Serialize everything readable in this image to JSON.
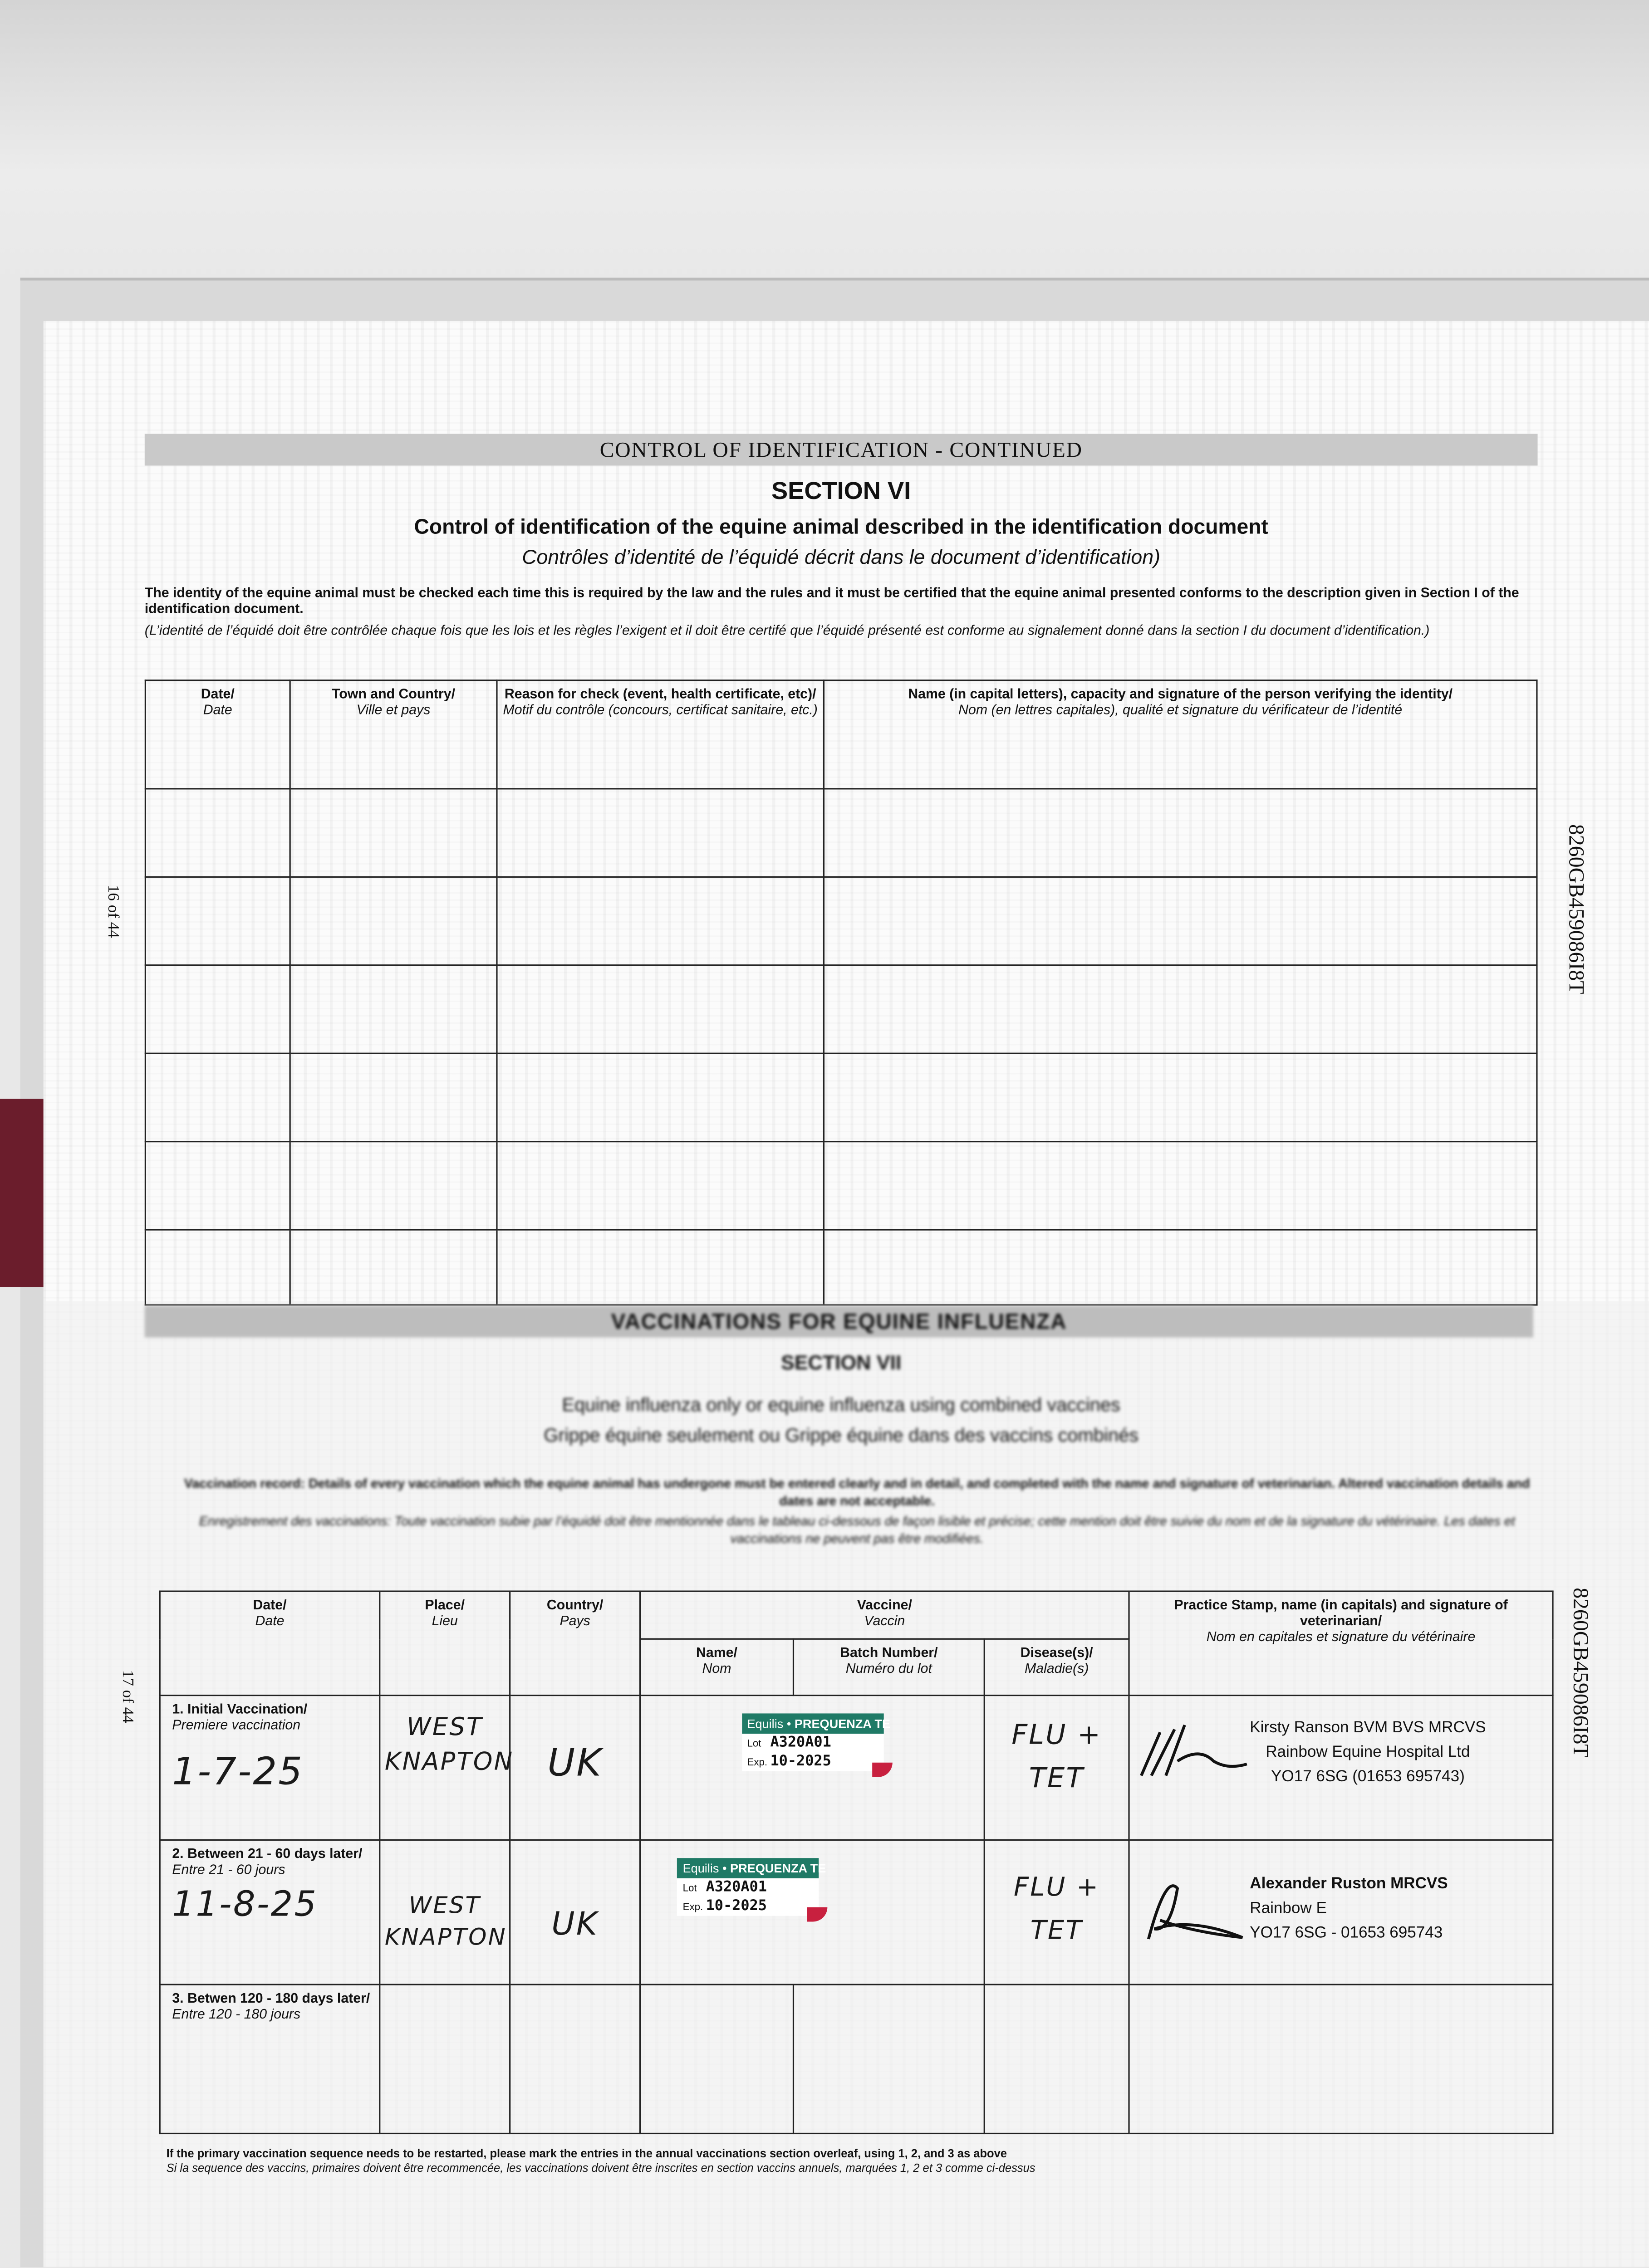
{
  "page16": {
    "band_title": "CONTROL OF IDENTIFICATION - CONTINUED",
    "section": "SECTION VI",
    "title": "Control of identification of the equine animal described in the identification document",
    "subtitle": "Contrôles d’identité de l’équidé décrit dans le document d’identification)",
    "instructions_en": "The identity of the equine animal must be checked each time this is required by the law and the rules and it must be certified that the equine animal presented conforms to the description given in Section I of the identification document.",
    "instructions_fr": "(L’identité de l’équidé doit être contrôlée chaque fois que les lois et les règles l’exigent et il doit être certifé que l’équidé présenté est conforme au signalement donné dans la section I du document d’identification.)",
    "columns": [
      {
        "en": "Date/",
        "fr": "Date"
      },
      {
        "en": "Town and Country/",
        "fr": "Ville et pays"
      },
      {
        "en": "Reason for check (event, health certificate, etc)/",
        "fr": "Motif du contrôle (concours, certificat sanitaire, etc.)"
      },
      {
        "en": "Name (in capital letters), capacity and signature of the person verifying the identity/",
        "fr": "Nom (en lettres capitales), qualité et signature du vérificateur de l’identité"
      }
    ],
    "page_number": "16 of 44",
    "passport_number": "8260GB459086I8T"
  },
  "page17": {
    "band_title": "VACCINATIONS FOR EQUINE INFLUENZA",
    "section": "SECTION VII",
    "title": "Equine influenza only or equine influenza using combined vaccines",
    "subtitle": "Grippe équine seulement ou Grippe équine dans des vaccins combinés",
    "instructions_en": "Vaccination record: Details of every vaccination which the equine animal has undergone must be entered clearly and in detail, and completed with the name and signature of veterinarian. Altered vaccination details and dates are not acceptable.",
    "instructions_fr": "Enregistrement des vaccinations: Toute vaccination subie par l’équidé doit être mentionnée dans le tableau ci-dessous de façon lisible et précise; cette mention doit être suivie du nom et de la signature du vétérinaire. Les dates et vaccinations ne peuvent pas être modifiées.",
    "columns": {
      "date": {
        "en": "Date/",
        "fr": "Date"
      },
      "place": {
        "en": "Place/",
        "fr": "Lieu"
      },
      "country": {
        "en": "Country/",
        "fr": "Pays"
      },
      "vaccine": {
        "en": "Vaccine/",
        "fr": "Vaccin"
      },
      "name": {
        "en": "Name/",
        "fr": "Nom"
      },
      "batch": {
        "en": "Batch Number/",
        "fr": "Numéro du lot"
      },
      "disease": {
        "en": "Disease(s)/",
        "fr": "Maladie(s)"
      },
      "stamp": {
        "en": "Practice Stamp, name (in capitals) and signature of veterinarian/",
        "fr": "Nom en capitales et signature du vétérinaire"
      }
    },
    "rows": [
      {
        "label_en": "1. Initial Vaccination/",
        "label_fr": "Premiere vaccination",
        "date": "1-7-25",
        "place": "WEST KNAPTON",
        "country": "UK",
        "vaccine_brand": "Equilis",
        "vaccine_product": "PREQUENZA TE",
        "lot_label": "Lot",
        "lot": "A320A01",
        "exp_label": "Exp.",
        "exp": "10-2025",
        "disease": "FLU + TET",
        "vet_name": "Kirsty Ranson BVM BVS MRCVS",
        "vet_practice": "Rainbow Equine Hospital Ltd",
        "vet_address": "YO17 6SG (01653 695743)"
      },
      {
        "label_en": "2. Between 21 - 60 days later/",
        "label_fr": "Entre 21 - 60 jours",
        "date": "11-8-25",
        "place": "WEST KNAPTON",
        "country": "UK",
        "vaccine_brand": "Equilis",
        "vaccine_product": "PREQUENZA TE",
        "lot_label": "Lot",
        "lot": "A320A01",
        "exp_label": "Exp.",
        "exp": "10-2025",
        "disease": "FLU + TET",
        "vet_name": "Alexander Ruston MRCVS",
        "vet_practice": "Rainbow E",
        "vet_address": "YO17 6SG - 01653 695743"
      },
      {
        "label_en": "3. Betwen 120 - 180 days later/",
        "label_fr": "Entre 120 - 180 jours"
      }
    ],
    "footer_en": "If the primary vaccination sequence needs to be restarted, please mark the entries in the annual vaccinations section overleaf, using 1, 2, and 3 as above",
    "footer_fr": "Si la sequence des vaccins, primaires doivent être recommencée, les vaccinations doivent être inscrites en section vaccins annuels, marquées 1, 2 et 3 comme ci-dessus",
    "page_number": "17 of 44",
    "passport_number": "8260GB459086I8T"
  },
  "colors": {
    "label_green": "#1f7a66",
    "label_red": "#c8203f",
    "cover": "#6b1d2c"
  }
}
